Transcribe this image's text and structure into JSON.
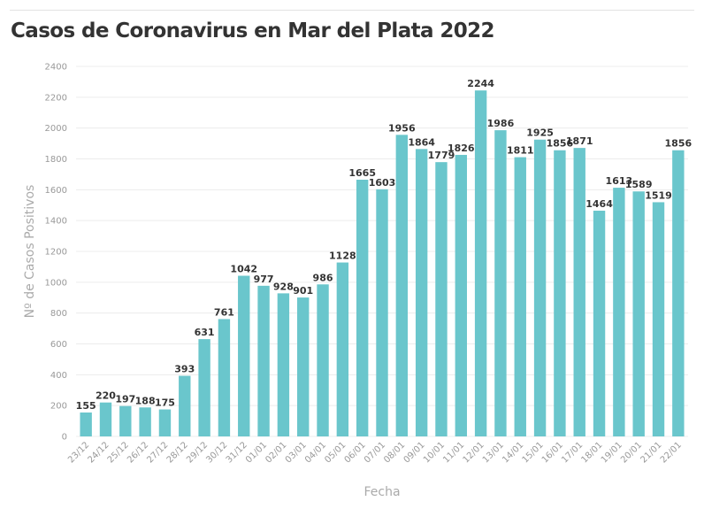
{
  "chart_data": {
    "type": "bar",
    "title": "Casos de Coronavirus en Mar del Plata 2022",
    "xlabel": "Fecha",
    "ylabel": "Nº de Casos Positivos",
    "ylim": [
      0,
      2400
    ],
    "yticks": [
      0,
      200,
      400,
      600,
      800,
      1000,
      1200,
      1400,
      1600,
      1800,
      2000,
      2200,
      2400
    ],
    "grid": true,
    "bar_color": "#6ac6cc",
    "categories": [
      "23/12",
      "24/12",
      "25/12",
      "26/12",
      "27/12",
      "28/12",
      "29/12",
      "30/12",
      "31/12",
      "01/01",
      "02/01",
      "03/01",
      "04/01",
      "05/01",
      "06/01",
      "07/01",
      "08/01",
      "09/01",
      "10/01",
      "11/01",
      "12/01",
      "13/01",
      "14/01",
      "15/01",
      "16/01",
      "17/01",
      "18/01",
      "19/01",
      "20/01",
      "21/01",
      "22/01"
    ],
    "values": [
      155,
      220,
      197,
      188,
      175,
      393,
      631,
      761,
      1042,
      977,
      928,
      901,
      986,
      1128,
      1665,
      1603,
      1956,
      1864,
      1779,
      1826,
      2244,
      1986,
      1811,
      1925,
      1856,
      1871,
      1464,
      1613,
      1589,
      1519,
      1856
    ]
  }
}
